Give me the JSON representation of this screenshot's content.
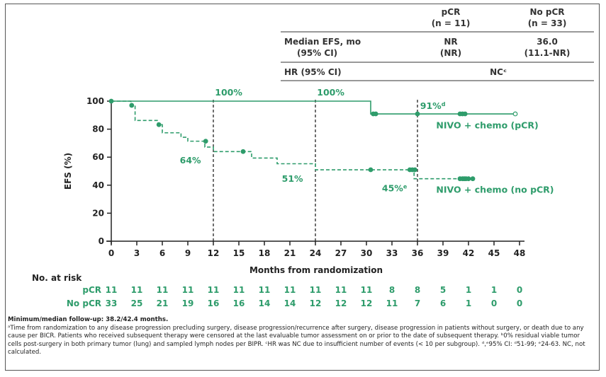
{
  "stats_table": {
    "col_headers": [
      {
        "line1": "pCR",
        "line2": "(n = 11)"
      },
      {
        "line1": "No pCR",
        "line2": "(n = 33)"
      }
    ],
    "rows": [
      {
        "label1": "Median EFS, mo",
        "label2": "(95% CI)",
        "pcr1": "NR",
        "pcr2": "(NR)",
        "nopcr1": "36.0",
        "nopcr2": "(11.1-NR)"
      },
      {
        "label1": "HR (95% CI)",
        "merged": "NCᶜ"
      }
    ]
  },
  "chart_data": {
    "type": "line",
    "subtype": "kaplan-meier",
    "xlabel": "Months from randomization",
    "ylabel": "EFS (%)",
    "xlim": [
      0,
      48
    ],
    "ylim": [
      0,
      100
    ],
    "xticks": [
      "0",
      "3",
      "6",
      "9",
      "12",
      "15",
      "18",
      "21",
      "24",
      "27",
      "30",
      "33",
      "36",
      "39",
      "42",
      "45",
      "48"
    ],
    "yticks": [
      "0",
      "20",
      "40",
      "60",
      "80",
      "100"
    ],
    "reference_lines_x": [
      12,
      24,
      36
    ],
    "series": [
      {
        "name": "NIVO + chemo (pCR)",
        "color": "#2e9c6b",
        "style": "solid",
        "steps": [
          [
            0,
            100
          ],
          [
            30.5,
            100
          ],
          [
            30.5,
            90.9
          ],
          [
            47.5,
            90.9
          ]
        ],
        "censor_x": [
          0,
          30.8,
          31.1,
          36.0,
          41.0,
          41.3,
          41.6,
          47.5
        ]
      },
      {
        "name": "NIVO + chemo (no pCR)",
        "color": "#2e9c6b",
        "style": "dashed",
        "steps": [
          [
            0,
            100
          ],
          [
            2.3,
            100
          ],
          [
            2.3,
            97
          ],
          [
            2.8,
            97
          ],
          [
            2.8,
            86.2
          ],
          [
            5.5,
            86.2
          ],
          [
            5.5,
            83.2
          ],
          [
            6.0,
            83.2
          ],
          [
            6.0,
            77.4
          ],
          [
            8.2,
            77.4
          ],
          [
            8.2,
            74.2
          ],
          [
            9.0,
            74.2
          ],
          [
            9.0,
            71.4
          ],
          [
            11.0,
            71.4
          ],
          [
            11.0,
            67.2
          ],
          [
            12.0,
            67.2
          ],
          [
            12.0,
            64.0
          ],
          [
            16.5,
            64.0
          ],
          [
            16.5,
            59.4
          ],
          [
            19.5,
            59.4
          ],
          [
            19.5,
            55.3
          ],
          [
            24.0,
            55.3
          ],
          [
            24.0,
            51.0
          ],
          [
            35.6,
            51.0
          ],
          [
            35.6,
            44.6
          ],
          [
            42.5,
            44.6
          ]
        ],
        "censor_x": [
          30.5,
          35.1,
          35.4,
          35.7,
          41.0,
          41.3,
          41.5,
          41.7,
          42.0,
          42.5
        ],
        "censor_y": [
          51.0,
          51.0,
          51.0,
          51.0,
          44.6,
          44.6,
          44.6,
          44.6,
          44.6,
          44.6
        ]
      }
    ],
    "annotations": [
      {
        "text": "100%",
        "x": 13.8,
        "y": 104
      },
      {
        "text": "100%",
        "x": 25.8,
        "y": 104
      },
      {
        "text": "91%",
        "sup": "d",
        "x": 37.8,
        "y": 94.5
      },
      {
        "text": "64%",
        "x": 9.3,
        "y": 55.5
      },
      {
        "text": "51%",
        "x": 21.3,
        "y": 42.5
      },
      {
        "text": "45%",
        "sup": "e",
        "x": 33.3,
        "y": 35.5
      },
      {
        "text": "NIVO + chemo (pCR)",
        "x": 38.2,
        "y": 80.5
      },
      {
        "text": "NIVO + chemo (no pCR)",
        "x": 38.2,
        "y": 34.5
      }
    ]
  },
  "risk_table": {
    "title": "No. at risk",
    "rows": [
      {
        "label": "pCR",
        "values": [
          "11",
          "11",
          "11",
          "11",
          "11",
          "11",
          "11",
          "11",
          "11",
          "11",
          "11",
          "8",
          "8",
          "5",
          "1",
          "1",
          "0"
        ]
      },
      {
        "label": "No pCR",
        "values": [
          "33",
          "25",
          "21",
          "19",
          "16",
          "16",
          "14",
          "14",
          "12",
          "12",
          "12",
          "11",
          "7",
          "6",
          "1",
          "0",
          "0"
        ]
      }
    ]
  },
  "footnotes": {
    "followup": "Minimum/median follow-up: 38.2/42.4 months.",
    "note_a": "ᵃTime from randomization to any disease progression precluding surgery, disease progression/recurrence after surgery, disease progression in patients without surgery, or death due to any cause per BICR. Patients who received subsequent therapy were censored at the last evaluable tumor assessment on or prior to the date of subsequent therapy. ᵇ0% residual viable tumor cells post-surgery in both primary tumor (lung) and sampled lymph nodes per BIPR. ᶜHR was NC due to insufficient number of events (< 10 per subgroup). ᵈ,ᵉ95% CI: ᵈ51-99; ᵉ24-63. NC, not calculated."
  }
}
